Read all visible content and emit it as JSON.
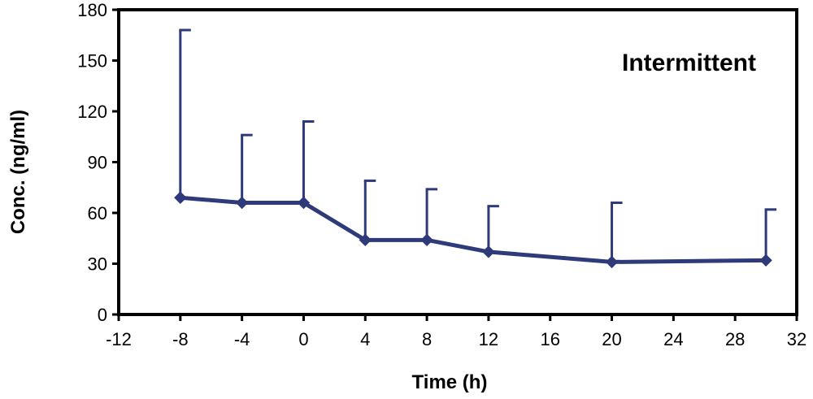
{
  "chart_data": {
    "type": "line",
    "title": "",
    "xlabel": "Time (h)",
    "ylabel": "Conc. (ng/ml)",
    "xlim": [
      -12,
      32
    ],
    "ylim": [
      0,
      180
    ],
    "x_ticks": [
      -12,
      -8,
      -4,
      0,
      4,
      8,
      12,
      16,
      20,
      24,
      28,
      32
    ],
    "y_ticks": [
      0,
      30,
      60,
      90,
      120,
      150,
      180
    ],
    "grid": false,
    "legend": "none",
    "annotations": [
      {
        "text": "Intermittent",
        "position": "top-right"
      }
    ],
    "series": [
      {
        "color": "#2e3a7a",
        "marker": "diamond",
        "x": [
          -8,
          -4,
          0,
          4,
          8,
          12,
          20,
          30
        ],
        "y": [
          69,
          66,
          66,
          44,
          44,
          37,
          31,
          32
        ],
        "error_upper": [
          168,
          106,
          114,
          79,
          74,
          64,
          66,
          62
        ]
      }
    ]
  }
}
